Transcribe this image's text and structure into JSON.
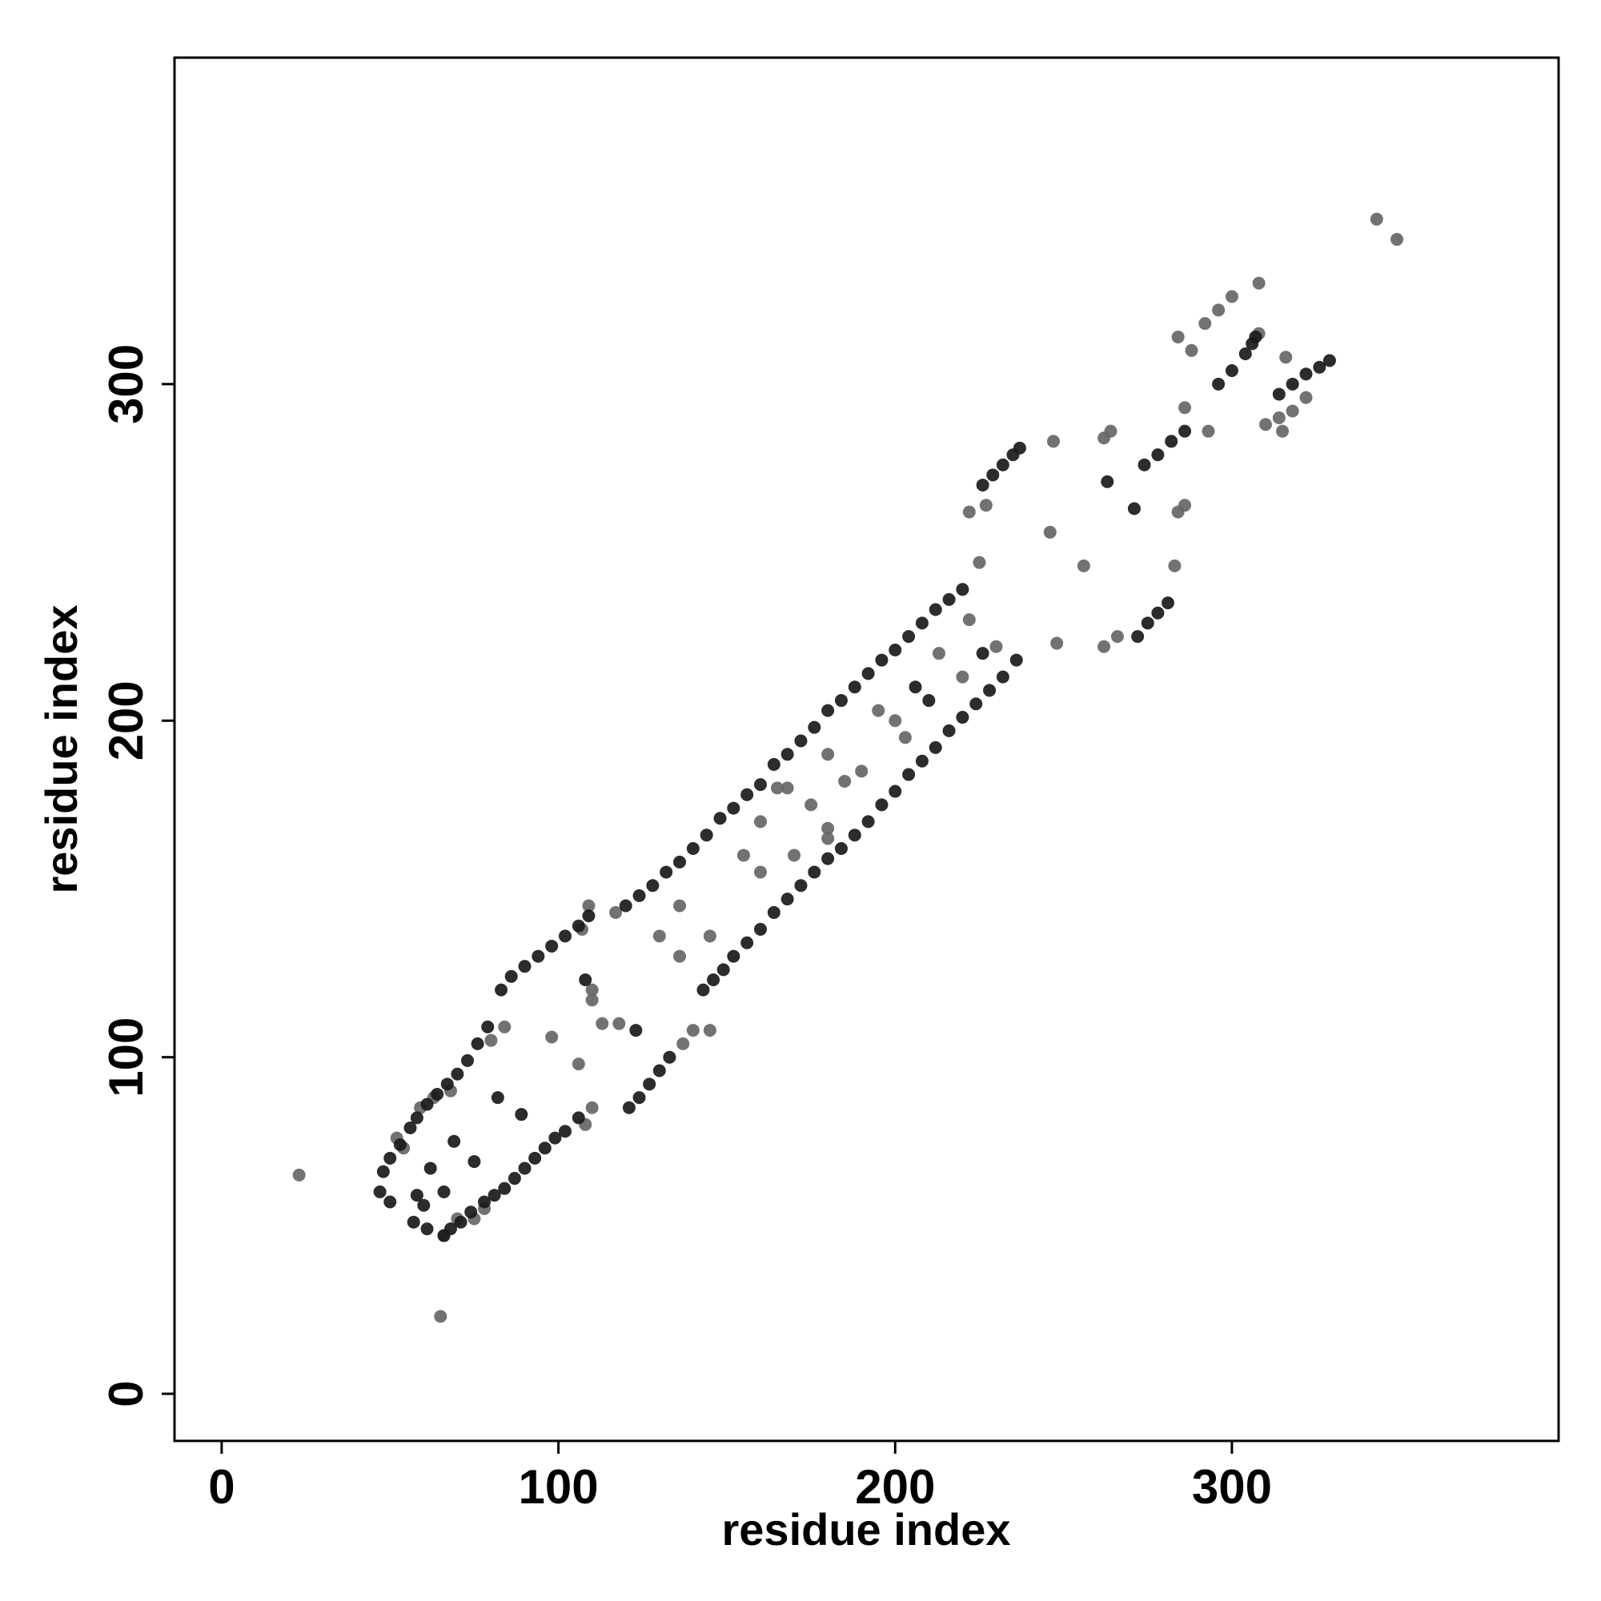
{
  "chart_data": {
    "type": "scatter",
    "xlabel": "residue index",
    "ylabel": "residue index",
    "xlim": [
      -14,
      397
    ],
    "ylim": [
      -14,
      397
    ],
    "xticks": [
      0,
      100,
      200,
      300
    ],
    "yticks": [
      0,
      100,
      200,
      300
    ],
    "series": [
      {
        "color": "#666666",
        "x": [
          23,
          65,
          343,
          349,
          52,
          54,
          59,
          63,
          68,
          80,
          84,
          78,
          75,
          70,
          66,
          113,
          118,
          110,
          110,
          109,
          107,
          98,
          106,
          110,
          108,
          117,
          130,
          136,
          136,
          145,
          140,
          145,
          137,
          155,
          160,
          160,
          170,
          165,
          180,
          180,
          185,
          190,
          195,
          203,
          200,
          220,
          213,
          222,
          230,
          225,
          222,
          227,
          247,
          246,
          256,
          248,
          262,
          264,
          262,
          266,
          284,
          286,
          283,
          293,
          286,
          284,
          288,
          292,
          296,
          300,
          308,
          308,
          316,
          315,
          318,
          322,
          310,
          314,
          180,
          168,
          175
        ],
        "y": [
          65,
          23,
          349,
          343,
          76,
          73,
          85,
          88,
          90,
          105,
          109,
          55,
          52,
          52,
          47,
          110,
          110,
          120,
          117,
          145,
          138,
          106,
          98,
          85,
          80,
          143,
          136,
          130,
          145,
          136,
          108,
          108,
          104,
          160,
          155,
          170,
          160,
          180,
          165,
          190,
          182,
          185,
          203,
          195,
          200,
          213,
          220,
          230,
          222,
          247,
          262,
          264,
          283,
          256,
          246,
          223,
          284,
          286,
          222,
          225,
          262,
          264,
          246,
          286,
          293,
          314,
          310,
          318,
          322,
          326,
          330,
          315,
          308,
          286,
          292,
          296,
          288,
          290,
          168,
          180,
          175
        ]
      },
      {
        "color": "#1a1a1a",
        "x": [
          48,
          50,
          53,
          56,
          58,
          61,
          64,
          67,
          70,
          73,
          76,
          79,
          83,
          86,
          90,
          94,
          98,
          102,
          106,
          109,
          120,
          124,
          128,
          132,
          136,
          140,
          144,
          148,
          152,
          156,
          160,
          164,
          168,
          172,
          176,
          180,
          184,
          188,
          192,
          196,
          200,
          204,
          208,
          212,
          216,
          220,
          226,
          229,
          232,
          235,
          237,
          66,
          68,
          71,
          74,
          78,
          81,
          84,
          87,
          90,
          93,
          96,
          99,
          102,
          106,
          121,
          124,
          127,
          130,
          133,
          143,
          146,
          149,
          152,
          156,
          160,
          164,
          168,
          172,
          176,
          180,
          184,
          188,
          192,
          196,
          200,
          204,
          208,
          212,
          216,
          220,
          224,
          228,
          232,
          236,
          272,
          275,
          278,
          281,
          274,
          278,
          282,
          286,
          296,
          300,
          304,
          306,
          307,
          314,
          318,
          322,
          326,
          329,
          58,
          60,
          57,
          61,
          62,
          66,
          69,
          75,
          82,
          89,
          108,
          123,
          47,
          50,
          226,
          263,
          271,
          206,
          210
        ],
        "y": [
          66,
          70,
          74,
          79,
          82,
          86,
          89,
          92,
          95,
          99,
          104,
          109,
          120,
          124,
          127,
          130,
          133,
          136,
          139,
          142,
          145,
          148,
          151,
          155,
          158,
          162,
          166,
          171,
          174,
          178,
          181,
          187,
          190,
          194,
          198,
          203,
          206,
          210,
          214,
          218,
          221,
          225,
          229,
          233,
          236,
          239,
          270,
          273,
          276,
          279,
          281,
          47,
          49,
          51,
          54,
          57,
          59,
          61,
          64,
          67,
          70,
          73,
          76,
          78,
          82,
          85,
          88,
          92,
          96,
          100,
          120,
          123,
          126,
          130,
          134,
          138,
          143,
          147,
          151,
          155,
          159,
          162,
          166,
          170,
          175,
          179,
          184,
          188,
          192,
          197,
          201,
          205,
          209,
          213,
          218,
          225,
          229,
          232,
          235,
          276,
          279,
          283,
          286,
          300,
          304,
          309,
          312,
          314,
          297,
          300,
          303,
          305,
          307,
          59,
          56,
          51,
          49,
          67,
          60,
          75,
          69,
          88,
          83,
          123,
          108,
          60,
          57,
          220,
          271,
          263,
          210,
          206
        ]
      }
    ]
  }
}
